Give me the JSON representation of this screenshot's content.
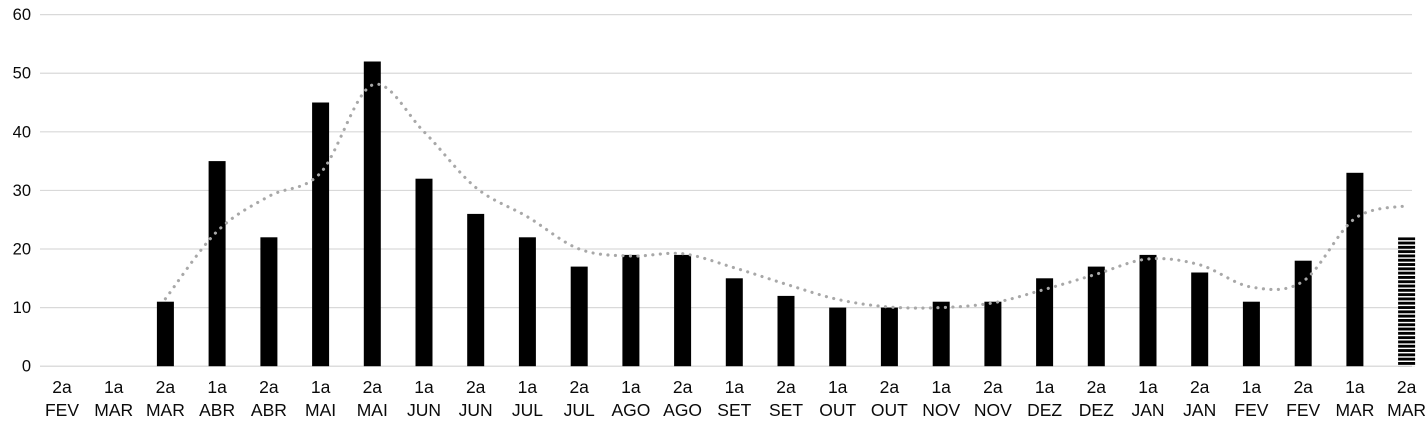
{
  "chart_data": {
    "type": "bar",
    "title": "",
    "xlabel": "",
    "ylabel": "",
    "categories": [
      "2a FEV",
      "1a MAR",
      "2a MAR",
      "1a ABR",
      "2a ABR",
      "1a MAI",
      "2a MAI",
      "1a JUN",
      "2a JUN",
      "1a JUL",
      "2a JUL",
      "1a AGO",
      "2a AGO",
      "1a SET",
      "2a SET",
      "1a OUT",
      "2a OUT",
      "1a NOV",
      "2a NOV",
      "1a DEZ",
      "2a DEZ",
      "1a JAN",
      "2a JAN",
      "1a FEV",
      "2a FEV",
      "1a MAR",
      "2a MAR"
    ],
    "series": [
      {
        "name": "weekly-bars",
        "type": "bar",
        "color": "#000000",
        "values": [
          0,
          0,
          11,
          35,
          22,
          45,
          52,
          32,
          26,
          22,
          17,
          19,
          19,
          15,
          12,
          10,
          10,
          11,
          11,
          15,
          17,
          19,
          16,
          11,
          18,
          33,
          22
        ],
        "striped_indices": [
          26
        ]
      },
      {
        "name": "trend-dotted",
        "type": "line",
        "style": "dotted",
        "color": "#a8a8a8",
        "values": [
          null,
          null,
          11.5,
          23,
          29,
          33,
          48,
          40,
          30.5,
          25.5,
          20,
          18.8,
          19.2,
          16.8,
          14,
          11.4,
          10.1,
          10,
          10.8,
          13.1,
          15.7,
          18.3,
          17.3,
          13.5,
          14.5,
          25.2,
          27.4
        ]
      }
    ],
    "ylim": [
      0,
      60
    ],
    "yticks": [
      0,
      10,
      20,
      30,
      40,
      50,
      60
    ],
    "grid": true,
    "legend": false,
    "background": "#ffffff",
    "gridline_color": "#d9d9d9",
    "zero_line_color": "#d2d2d2",
    "axis_text_color": "#0a0a0a"
  }
}
